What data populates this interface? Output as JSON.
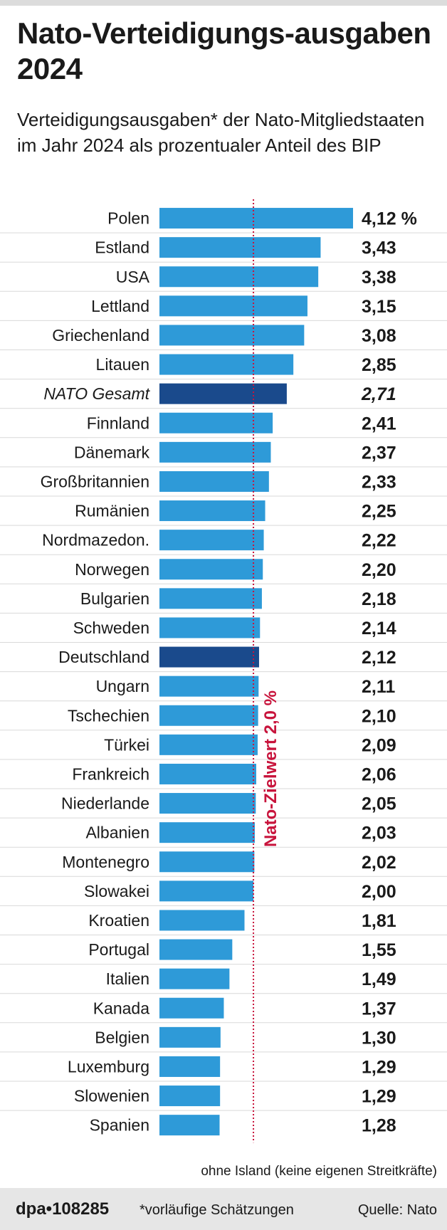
{
  "header": {
    "title": "Nato-Verteidigungs-ausgaben 2024",
    "subtitle": "Verteidigungsausgaben* der Nato-Mitgliedstaaten im Jahr 2024 als prozentualer Anteil des BIP"
  },
  "chart_data": {
    "type": "bar",
    "orientation": "horizontal",
    "unit": "%",
    "categories": [
      "Polen",
      "Estland",
      "USA",
      "Lettland",
      "Griechenland",
      "Litauen",
      "NATO Gesamt",
      "Finnland",
      "Dänemark",
      "Großbritannien",
      "Rumänien",
      "Nordmazedon.",
      "Norwegen",
      "Bulgarien",
      "Schweden",
      "Deutschland",
      "Ungarn",
      "Tschechien",
      "Türkei",
      "Frankreich",
      "Niederlande",
      "Albanien",
      "Montenegro",
      "Slowakei",
      "Kroatien",
      "Portugal",
      "Italien",
      "Kanada",
      "Belgien",
      "Luxemburg",
      "Slowenien",
      "Spanien"
    ],
    "values": [
      4.12,
      3.43,
      3.38,
      3.15,
      3.08,
      2.85,
      2.71,
      2.41,
      2.37,
      2.33,
      2.25,
      2.22,
      2.2,
      2.18,
      2.14,
      2.12,
      2.11,
      2.1,
      2.09,
      2.06,
      2.05,
      2.03,
      2.02,
      2.0,
      1.81,
      1.55,
      1.49,
      1.37,
      1.3,
      1.29,
      1.29,
      1.28
    ],
    "value_labels": [
      "4,12 %",
      "3,43",
      "3,38",
      "3,15",
      "3,08",
      "2,85",
      "2,71",
      "2,41",
      "2,37",
      "2,33",
      "2,25",
      "2,22",
      "2,20",
      "2,18",
      "2,14",
      "2,12",
      "2,11",
      "2,10",
      "2,09",
      "2,06",
      "2,05",
      "2,03",
      "2,02",
      "2,00",
      "1,81",
      "1,55",
      "1,49",
      "1,37",
      "1,30",
      "1,29",
      "1,29",
      "1,28"
    ],
    "highlight": [
      "NATO Gesamt",
      "Deutschland"
    ],
    "italic": [
      "NATO Gesamt"
    ],
    "colors": {
      "bar": "#2e9ad8",
      "highlight": "#1a4a8c",
      "target": "#c8143c",
      "grid": "#d9d9d9"
    },
    "target": {
      "value": 2.0,
      "label": "Nato-Zielwert 2,0 %"
    },
    "xlim": [
      0,
      4.12
    ],
    "grid": true,
    "legend": "none"
  },
  "notes": {
    "exclusion": "ohne Island (keine eigenen Streitkräfte)"
  },
  "footer": {
    "logo": "dpa•108285",
    "estimate": "*vorläufige Schätzungen",
    "source": "Quelle: Nato"
  }
}
